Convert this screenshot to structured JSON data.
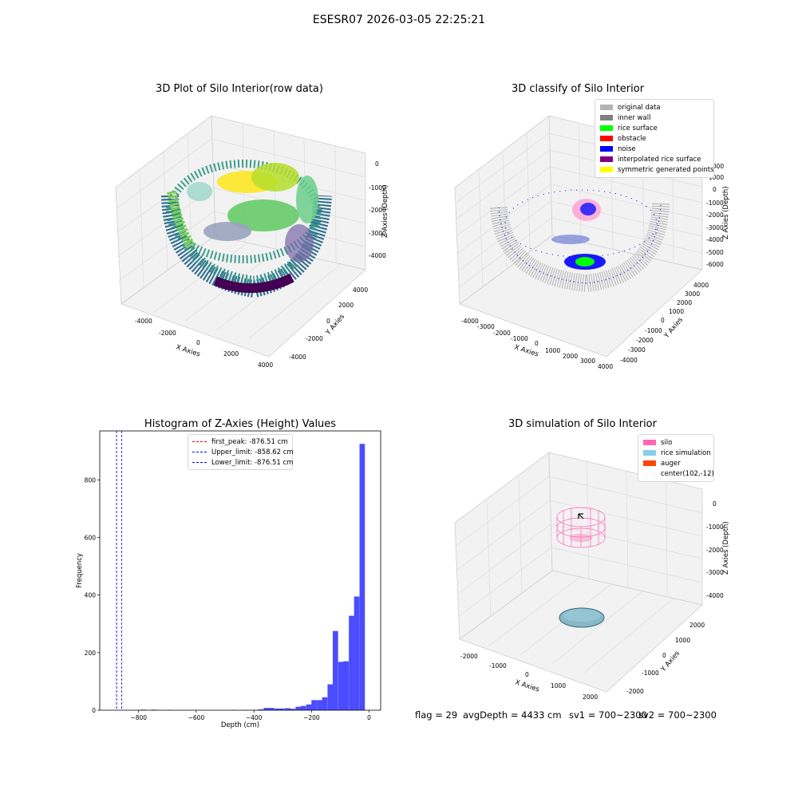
{
  "figure": {
    "suptitle": "ESESR07 2026-03-05 22:25:21",
    "status": {
      "flag": "flag = 29",
      "avg_depth": "avgDepth = 4433 cm",
      "sv1": "sv1 = 700~2300",
      "sv2": "sv2 = 700~2300"
    }
  },
  "panels": {
    "raw": {
      "title": "3D Plot of Silo Interior(row data)",
      "xlabel": "X Axies",
      "ylabel": "Y Axies",
      "zlabel": "Z Axies (Depth)",
      "xticks": [
        "-4000",
        "-2000",
        "0",
        "2000",
        "4000"
      ],
      "yticks": [
        "4000",
        "2000",
        "0",
        "-2000",
        "-4000"
      ],
      "zticks": [
        "0",
        "-1000",
        "-2000",
        "-3000",
        "-4000"
      ]
    },
    "classify": {
      "title": "3D classify of Silo Interior",
      "xlabel": "X Axies",
      "ylabel": "Y Axies",
      "zlabel": "Z Axies (Depth)",
      "xticks": [
        "-4000",
        "-3000",
        "-2000",
        "-1000",
        "0",
        "1000",
        "2000",
        "3000",
        "4000"
      ],
      "yticks": [
        "4000",
        "3000",
        "2000",
        "1000",
        "0",
        "-1000",
        "-2000",
        "-3000",
        "-4000"
      ],
      "zticks": [
        "2000",
        "1000",
        "0",
        "-1000",
        "-2000",
        "-3000",
        "-4000",
        "-5000",
        "-6000"
      ],
      "legend": [
        {
          "label": "original data",
          "color": "#b3b3b3"
        },
        {
          "label": "inner wall",
          "color": "#808080"
        },
        {
          "label": "rice surface",
          "color": "#00ff00"
        },
        {
          "label": "obstacle",
          "color": "#ff0000"
        },
        {
          "label": "noise",
          "color": "#0000ff"
        },
        {
          "label": "interpolated rice surface",
          "color": "#800080"
        },
        {
          "label": "symmetric generated points",
          "color": "#ffff00"
        }
      ]
    },
    "simulation": {
      "title": "3D simulation of Silo Interior",
      "xlabel": "X Axies",
      "ylabel": "Y Axies",
      "zlabel": "Z Axies (Depth)",
      "xticks": [
        "-2000",
        "-1000",
        "0",
        "1000",
        "2000"
      ],
      "yticks": [
        "2000",
        "1000",
        "0",
        "-1000",
        "-2000"
      ],
      "zticks": [
        "0",
        "-1000",
        "-2000",
        "-3000",
        "-4000"
      ],
      "legend": [
        {
          "label": "silo",
          "color": "#ff69b4"
        },
        {
          "label": "rice simulation",
          "color": "#87ceeb"
        },
        {
          "label": "auger",
          "color": "#ff4500"
        },
        {
          "label": "center(102,-12)",
          "color": ""
        }
      ]
    }
  },
  "chart_data": {
    "type": "bar",
    "title": "Histogram of Z-Axies (Height) Values",
    "xlabel": "Depth (cm)",
    "ylabel": "Frequency",
    "xlim": [
      -935,
      40
    ],
    "ylim": [
      0,
      970
    ],
    "xticks": [
      -800,
      -600,
      -400,
      -200,
      0
    ],
    "yticks": [
      0,
      200,
      400,
      600,
      800
    ],
    "bin_width": 18.5,
    "bins": [
      {
        "x": -783,
        "count": 2
      },
      {
        "x": -746,
        "count": 2
      },
      {
        "x": -690,
        "count": 1
      },
      {
        "x": -468,
        "count": 1
      },
      {
        "x": -431,
        "count": 1
      },
      {
        "x": -394,
        "count": 1
      },
      {
        "x": -376,
        "count": 3
      },
      {
        "x": -357,
        "count": 8
      },
      {
        "x": -339,
        "count": 8
      },
      {
        "x": -320,
        "count": 6
      },
      {
        "x": -302,
        "count": 6
      },
      {
        "x": -283,
        "count": 7
      },
      {
        "x": -265,
        "count": 5
      },
      {
        "x": -246,
        "count": 12
      },
      {
        "x": -228,
        "count": 15
      },
      {
        "x": -209,
        "count": 20
      },
      {
        "x": -191,
        "count": 35
      },
      {
        "x": -172,
        "count": 35
      },
      {
        "x": -154,
        "count": 45
      },
      {
        "x": -135,
        "count": 90
      },
      {
        "x": -117,
        "count": 275
      },
      {
        "x": -98,
        "count": 168
      },
      {
        "x": -80,
        "count": 170
      },
      {
        "x": -61,
        "count": 328
      },
      {
        "x": -43,
        "count": 395
      },
      {
        "x": -24,
        "count": 925
      }
    ],
    "bar_color": "#4b4bff",
    "vlines": [
      {
        "name": "first_peak",
        "x": -876.51,
        "label": "first_peak: -876.51 cm",
        "color": "#ff0000"
      },
      {
        "name": "Upper_limit",
        "x": -858.62,
        "label": "Upper_limit: -858.62 cm",
        "color": "#0000ff"
      },
      {
        "name": "Lower_limit",
        "x": -876.51,
        "label": "Lower_limit: -876.51 cm",
        "color": "#0000ff"
      }
    ]
  }
}
